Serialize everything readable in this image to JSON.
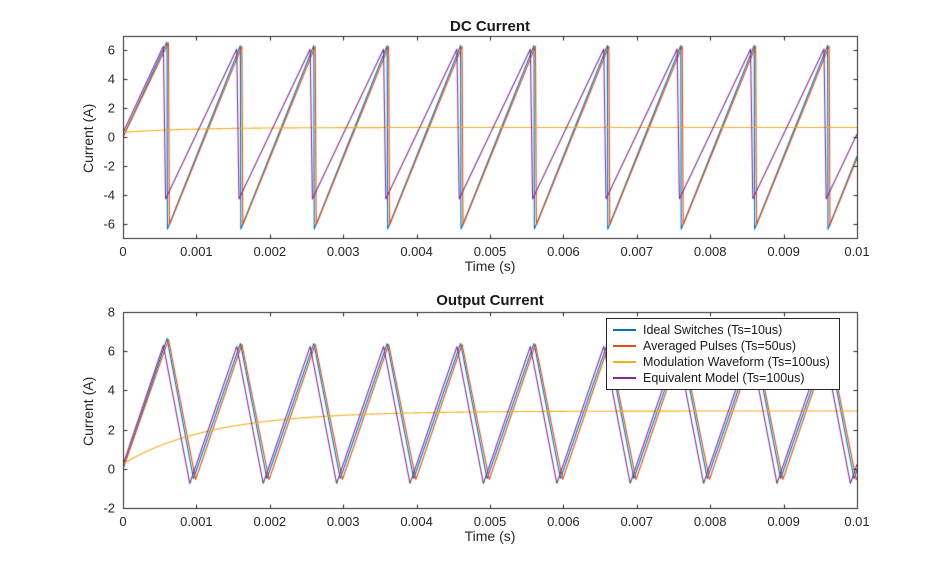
{
  "figure": {
    "background": "#ffffff",
    "axis_color": "#262626",
    "text_color": "#1a1a1a"
  },
  "chart_data": [
    {
      "type": "line",
      "title": "DC Current",
      "xlabel": "Time (s)",
      "ylabel": "Current (A)",
      "xlim": [
        0,
        0.01
      ],
      "ylim": [
        -7,
        7
      ],
      "grid": false,
      "box": true,
      "xticks": {
        "values": [
          0,
          0.001,
          0.002,
          0.003,
          0.004,
          0.005,
          0.006,
          0.007,
          0.008,
          0.009,
          0.01
        ],
        "labels": [
          "0",
          "0.001",
          "0.002",
          "0.003",
          "0.004",
          "0.005",
          "0.006",
          "0.007",
          "0.008",
          "0.009",
          "0.01"
        ]
      },
      "yticks": {
        "values": [
          -6,
          -4,
          -2,
          0,
          2,
          4,
          6
        ],
        "labels": [
          "-6",
          "-4",
          "-2",
          "0",
          "2",
          "4",
          "6"
        ]
      },
      "series": [
        {
          "name": "Ideal Switches (Ts=10us)",
          "color": "#0072BD",
          "waveform": {
            "type": "saw",
            "T": 0.001,
            "tpk": 0.0006,
            "max": 6.35,
            "max0": 6.6,
            "min": -6.4,
            "start": 0,
            "fallFrac": 0.004
          }
        },
        {
          "name": "Averaged Pulses (Ts=50us)",
          "color": "#D95319",
          "waveform": {
            "type": "saw",
            "T": 0.001,
            "tpk": 0.00062,
            "max": 6.3,
            "max0": 6.55,
            "min": -6.1,
            "start": 0,
            "fallFrac": 0.012
          }
        },
        {
          "name": "Modulation Waveform (Ts=100us)",
          "color": "#EDB120",
          "waveform": {
            "type": "exp",
            "y0": 0.32,
            "yf": 0.66,
            "tau": 0.0009
          }
        },
        {
          "name": "Equivalent Model (Ts=100us)",
          "color": "#7E2F8E",
          "waveform": {
            "type": "saw",
            "T": 0.001,
            "tpk": 0.00055,
            "max": 6.1,
            "max0": 6.3,
            "min": -4.3,
            "start": 0.3,
            "fallFrac": 0.03
          }
        }
      ],
      "legend": null
    },
    {
      "type": "line",
      "title": "Output Current",
      "xlabel": "Time (s)",
      "ylabel": "Current (A)",
      "xlim": [
        0,
        0.01
      ],
      "ylim": [
        -2,
        8
      ],
      "grid": false,
      "box": true,
      "xticks": {
        "values": [
          0,
          0.001,
          0.002,
          0.003,
          0.004,
          0.005,
          0.006,
          0.007,
          0.008,
          0.009,
          0.01
        ],
        "labels": [
          "0",
          "0.001",
          "0.002",
          "0.003",
          "0.004",
          "0.005",
          "0.006",
          "0.007",
          "0.008",
          "0.009",
          "0.01"
        ]
      },
      "yticks": {
        "values": [
          -2,
          0,
          2,
          4,
          6,
          8
        ],
        "labels": [
          "-2",
          "0",
          "2",
          "4",
          "6",
          "8"
        ]
      },
      "series": [
        {
          "name": "Ideal Switches (Ts=10us)",
          "color": "#0072BD",
          "waveform": {
            "type": "tri",
            "T": 0.001,
            "tpk": 0.0006,
            "max": 6.4,
            "max0": 6.65,
            "min": -0.5,
            "start": 0,
            "fallFrac": 0.36
          }
        },
        {
          "name": "Averaged Pulses (Ts=50us)",
          "color": "#D95319",
          "waveform": {
            "type": "tri",
            "T": 0.001,
            "tpk": 0.00062,
            "max": 6.35,
            "max0": 6.6,
            "min": -0.55,
            "start": 0,
            "fallFrac": 0.37
          }
        },
        {
          "name": "Modulation Waveform (Ts=100us)",
          "color": "#EDB120",
          "waveform": {
            "type": "exp",
            "y0": 0.25,
            "yf": 2.95,
            "tau": 0.0012
          }
        },
        {
          "name": "Equivalent Model (Ts=100us)",
          "color": "#7E2F8E",
          "waveform": {
            "type": "tri",
            "T": 0.001,
            "tpk": 0.00055,
            "max": 6.25,
            "max0": 6.3,
            "min": -0.75,
            "start": 0.2,
            "fallFrac": 0.36
          }
        }
      ],
      "legend": {
        "location": "northeast",
        "entries": [
          "Ideal Switches (Ts=10us)",
          "Averaged Pulses (Ts=50us)",
          "Modulation Waveform (Ts=100us)",
          "Equivalent Model (Ts=100us)"
        ]
      }
    }
  ]
}
